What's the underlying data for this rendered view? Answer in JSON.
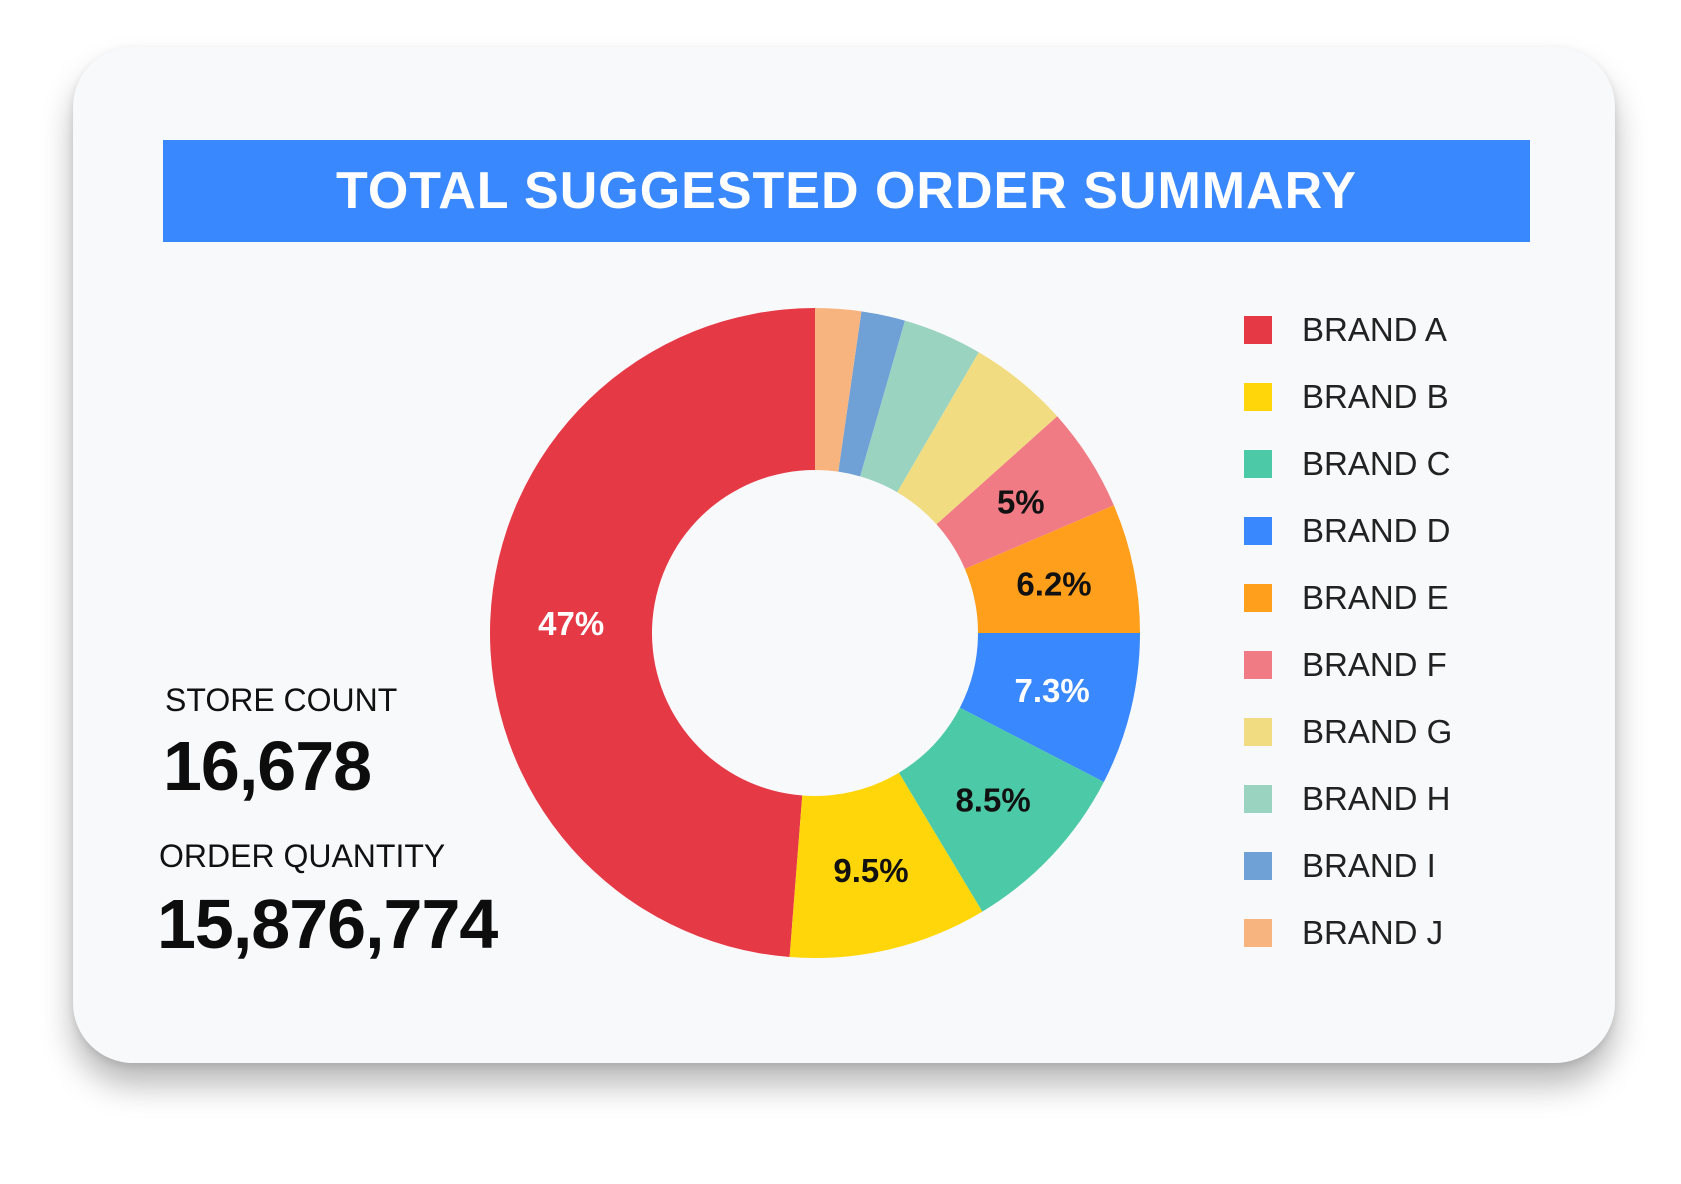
{
  "chart_data": {
    "type": "pie",
    "variant": "donut",
    "title": "TOTAL SUGGESTED ORDER SUMMARY",
    "categories": [
      "BRAND A",
      "BRAND B",
      "BRAND C",
      "BRAND D",
      "BRAND E",
      "BRAND F",
      "BRAND G",
      "BRAND H",
      "BRAND I",
      "BRAND J"
    ],
    "values": [
      47,
      9.5,
      8.5,
      7.3,
      6.2,
      5,
      4.8,
      3.8,
      2.1,
      2.2
    ],
    "data_labels": [
      "47%",
      "9.5%",
      "8.5%",
      "7.3%",
      "6.2%",
      "5%",
      "",
      "",
      "",
      ""
    ],
    "label_colors": [
      "#ffffff",
      "#111111",
      "#111111",
      "#ffffff",
      "#111111",
      "#111111",
      "",
      "",
      "",
      ""
    ],
    "colors": [
      "#e63946",
      "#ffd60a",
      "#4cc9a7",
      "#3a88fd",
      "#ff9f1c",
      "#f07b85",
      "#f2dc81",
      "#9bd3c1",
      "#6fa0d6",
      "#f7b47f"
    ],
    "start": "12 o'clock",
    "direction": "counter-clockwise",
    "legend": "right"
  },
  "stats": {
    "store_count_label": "STORE COUNT",
    "store_count_value": "16,678",
    "order_quantity_label": "ORDER QUANTITY",
    "order_quantity_value": "15,876,774"
  }
}
